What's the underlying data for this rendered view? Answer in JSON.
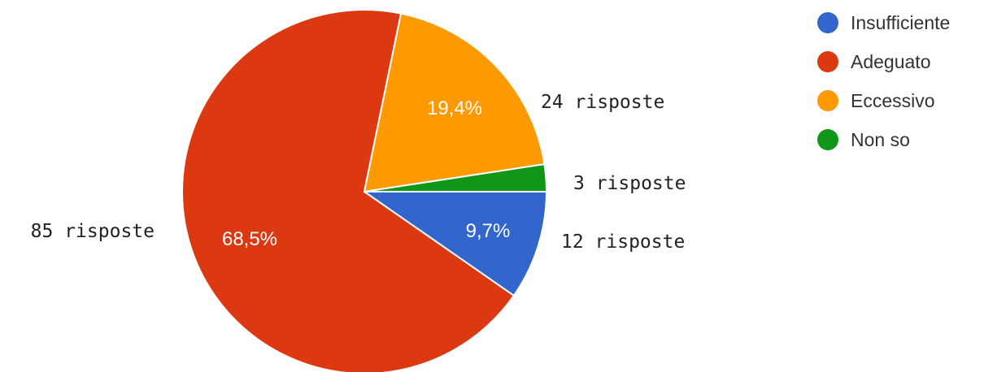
{
  "chart_data": {
    "type": "pie",
    "slices": [
      {
        "label": "Insufficiente",
        "value": 12,
        "percent_label": "9,7%",
        "count_label": "12 risposte",
        "color": "#3366cc"
      },
      {
        "label": "Adeguato",
        "value": 85,
        "percent_label": "68,5%",
        "count_label": "85 risposte",
        "color": "#dc3912"
      },
      {
        "label": "Eccessivo",
        "value": 24,
        "percent_label": "19,4%",
        "count_label": "24 risposte",
        "color": "#ff9900"
      },
      {
        "label": "Non so",
        "value": 3,
        "percent_label": "",
        "count_label": "3 risposte",
        "color": "#109618"
      }
    ],
    "legend_position": "top-right"
  }
}
